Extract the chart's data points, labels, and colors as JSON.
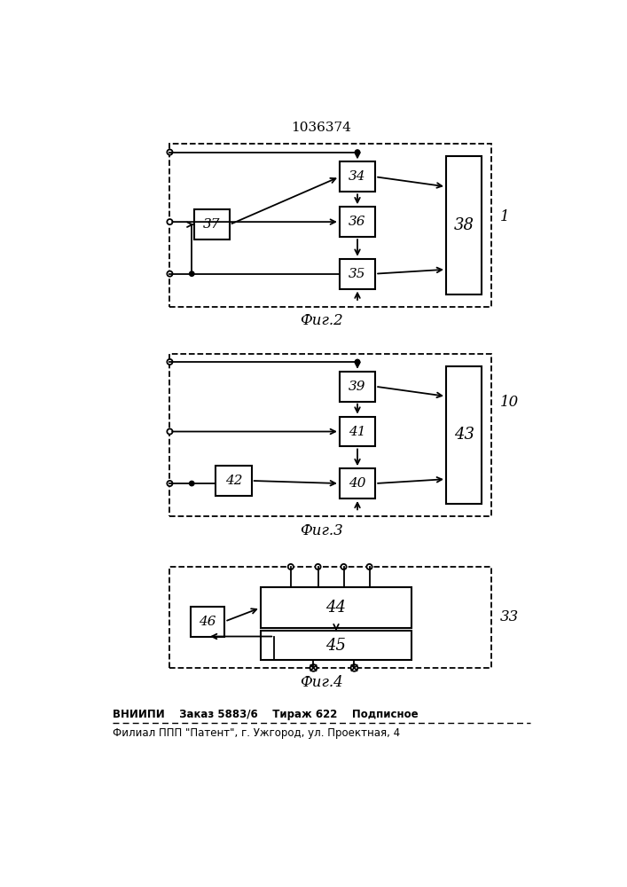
{
  "title": "1036374",
  "fig2_label": "Фиг.2",
  "fig3_label": "Фиг.3",
  "fig4_label": "Фиг.4",
  "footer_line1": "ВНИИПИ    Заказ 5883/6    Тираж 622    Подписное",
  "footer_line2": "Филиал ППП \"Патент\", г. Ужгород, ул. Проектная, 4",
  "bg_color": "#ffffff"
}
